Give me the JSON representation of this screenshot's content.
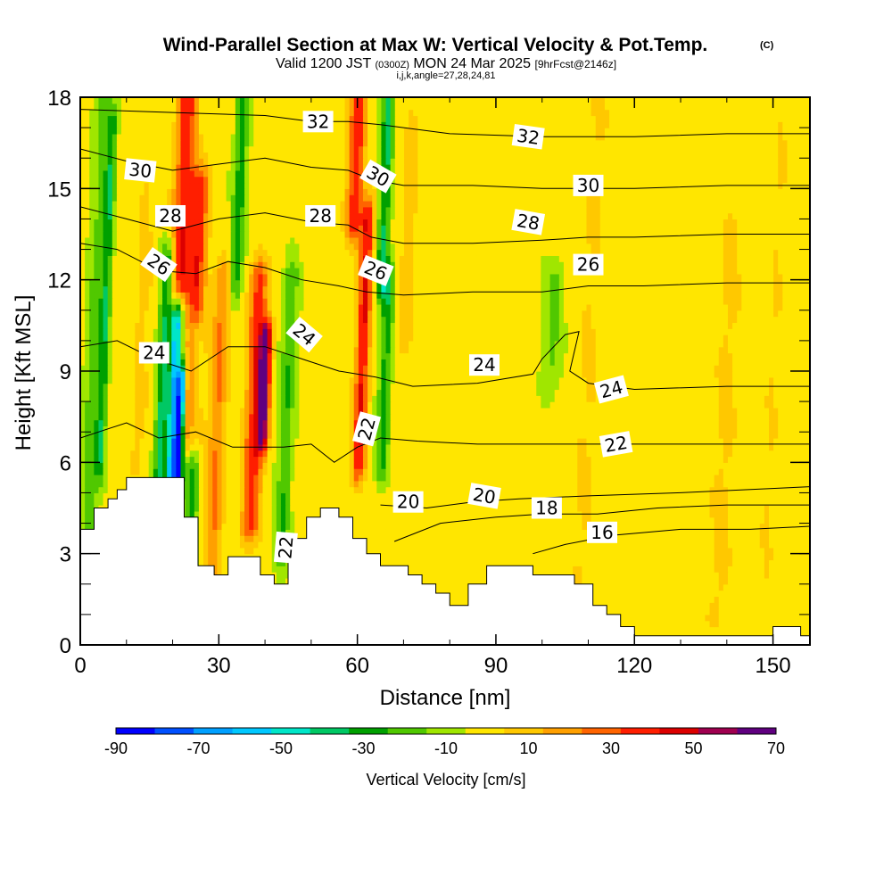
{
  "title": {
    "main": "Wind-Parallel Section at Max W: Vertical Velocity & Pot.Temp.",
    "copyright": "(C)",
    "valid_prefix": "Valid 1200 JST",
    "utc": "(0300Z)",
    "valid_date": "MON 24 Mar 2025",
    "forecast": "[9hrFcst@2146z]",
    "indices": "i,j,k,angle=27,28,24,81"
  },
  "chart_data": {
    "type": "heatmap",
    "xlabel": "Distance [nm]",
    "ylabel": "Height [Kft MSL]",
    "xlim": [
      0,
      158
    ],
    "ylim": [
      0,
      18
    ],
    "xticks": [
      "0",
      "30",
      "60",
      "90",
      "120",
      "150"
    ],
    "yticks": [
      "0",
      "3",
      "6",
      "9",
      "12",
      "15",
      "18"
    ],
    "x_minor_step": 10,
    "y_minor_step": 1,
    "colorbar": {
      "title": "Vertical Velocity [cm/s]",
      "tick_labels": [
        "-90",
        "-70",
        "-50",
        "-30",
        "-10",
        "10",
        "30",
        "50",
        "70"
      ],
      "bounds": [
        -90,
        -80,
        -70,
        -60,
        -50,
        -40,
        -30,
        -20,
        -10,
        0,
        10,
        20,
        30,
        40,
        50,
        60,
        70
      ],
      "colors": [
        "#0000ff",
        "#0050ff",
        "#00a0ff",
        "#00c8ff",
        "#00e6c8",
        "#00c864",
        "#00a000",
        "#50c800",
        "#a0e600",
        "#ffe600",
        "#ffc800",
        "#ffa000",
        "#ff6400",
        "#ff1e00",
        "#dc0000",
        "#a00050",
        "#600080"
      ]
    },
    "field_series": [
      {
        "x": 3,
        "w": 1.8,
        "ytop": 18,
        "ybot": 2.5,
        "amp": -18
      },
      {
        "x": 5,
        "w": 1.0,
        "ytop": 17,
        "ybot": 6,
        "amp": -28
      },
      {
        "x": 13,
        "w": 2.0,
        "ytop": 15,
        "ybot": 6,
        "amp": 10
      },
      {
        "x": 18,
        "w": 1.4,
        "ytop": 12.5,
        "ybot": 4.5,
        "amp": -36
      },
      {
        "x": 20.5,
        "w": 1.1,
        "ytop": 10.5,
        "ybot": 5.5,
        "amp": -62
      },
      {
        "x": 22,
        "w": 0.9,
        "ytop": 8.5,
        "ybot": 5.3,
        "amp": -85
      },
      {
        "x": 25,
        "w": 1.4,
        "ytop": 10,
        "ybot": 2.6,
        "amp": -28
      },
      {
        "x": 21,
        "w": 2.2,
        "ytop": 18,
        "ybot": 12,
        "amp": 45
      },
      {
        "x": 24.5,
        "w": 2.0,
        "ytop": 15,
        "ybot": 7,
        "amp": 42
      },
      {
        "x": 30,
        "w": 1.8,
        "ytop": 12,
        "ybot": 2.4,
        "amp": 28
      },
      {
        "x": 33,
        "w": 1.4,
        "ytop": 18,
        "ybot": 12,
        "amp": -28
      },
      {
        "x": 38,
        "w": 2.0,
        "ytop": 12,
        "ybot": 4,
        "amp": 42
      },
      {
        "x": 40,
        "w": 1.3,
        "ytop": 10,
        "ybot": 7,
        "amp": 62
      },
      {
        "x": 45,
        "w": 1.5,
        "ytop": 12,
        "ybot": 3,
        "amp": -22
      },
      {
        "x": 58,
        "w": 1.8,
        "ytop": 18,
        "ybot": 14,
        "amp": 45
      },
      {
        "x": 61,
        "w": 1.5,
        "ytop": 14,
        "ybot": 6,
        "amp": 48
      },
      {
        "x": 64.5,
        "w": 1.3,
        "ytop": 18,
        "ybot": 12,
        "amp": -35
      },
      {
        "x": 66,
        "w": 1.3,
        "ytop": 12,
        "ybot": 6,
        "amp": -28
      },
      {
        "x": 70,
        "w": 1.5,
        "ytop": 17,
        "ybot": 10,
        "amp": 14
      },
      {
        "x": 102,
        "w": 2.0,
        "ytop": 12,
        "ybot": 9,
        "amp": -15
      },
      {
        "x": 110,
        "w": 3.0,
        "ytop": 18,
        "ybot": 0.5,
        "amp": 8
      },
      {
        "x": 140,
        "w": 3.0,
        "ytop": 14,
        "ybot": 1,
        "amp": 9
      },
      {
        "x": 150,
        "w": 2.0,
        "ytop": 18,
        "ybot": 1,
        "amp": 7
      }
    ],
    "terrain": [
      [
        0,
        3.8
      ],
      [
        3,
        3.8
      ],
      [
        3,
        4.5
      ],
      [
        6,
        4.5
      ],
      [
        6,
        4.8
      ],
      [
        8,
        4.8
      ],
      [
        8,
        5.1
      ],
      [
        10,
        5.1
      ],
      [
        10,
        5.5
      ],
      [
        22.5,
        5.5
      ],
      [
        22.5,
        4.2
      ],
      [
        25.5,
        4.2
      ],
      [
        25.5,
        2.6
      ],
      [
        29,
        2.6
      ],
      [
        29,
        2.3
      ],
      [
        32,
        2.3
      ],
      [
        32,
        2.9
      ],
      [
        39,
        2.9
      ],
      [
        39,
        2.3
      ],
      [
        42,
        2.3
      ],
      [
        42,
        2.0
      ],
      [
        45,
        2.0
      ],
      [
        45,
        3.5
      ],
      [
        49,
        3.5
      ],
      [
        49,
        4.2
      ],
      [
        52,
        4.2
      ],
      [
        52,
        4.5
      ],
      [
        56,
        4.5
      ],
      [
        56,
        4.2
      ],
      [
        59,
        4.2
      ],
      [
        59,
        3.5
      ],
      [
        62,
        3.5
      ],
      [
        62,
        3.0
      ],
      [
        65,
        3.0
      ],
      [
        65,
        2.6
      ],
      [
        71,
        2.6
      ],
      [
        71,
        2.3
      ],
      [
        74,
        2.3
      ],
      [
        74,
        2.0
      ],
      [
        77,
        2.0
      ],
      [
        77,
        1.7
      ],
      [
        80,
        1.7
      ],
      [
        80,
        1.3
      ],
      [
        84,
        1.3
      ],
      [
        84,
        2.0
      ],
      [
        88,
        2.0
      ],
      [
        88,
        2.6
      ],
      [
        98,
        2.6
      ],
      [
        98,
        2.3
      ],
      [
        107,
        2.3
      ],
      [
        107,
        2.0
      ],
      [
        111,
        2.0
      ],
      [
        111,
        1.3
      ],
      [
        114,
        1.3
      ],
      [
        114,
        1.0
      ],
      [
        117,
        1.0
      ],
      [
        117,
        0.6
      ],
      [
        120,
        0.6
      ],
      [
        120,
        0.3
      ],
      [
        150,
        0.3
      ],
      [
        150,
        0.6
      ],
      [
        156,
        0.6
      ],
      [
        156,
        0.3
      ],
      [
        158,
        0.3
      ],
      [
        158,
        0
      ],
      [
        0,
        0
      ]
    ],
    "contour_series": [
      {
        "name": "32",
        "points": [
          [
            0,
            17.6
          ],
          [
            20,
            17.5
          ],
          [
            40,
            17.4
          ],
          [
            50,
            17.2
          ],
          [
            58,
            17.2
          ],
          [
            65,
            17.1
          ],
          [
            80,
            16.8
          ],
          [
            100,
            16.7
          ],
          [
            120,
            16.7
          ],
          [
            140,
            16.8
          ],
          [
            158,
            16.8
          ]
        ]
      },
      {
        "name": "30",
        "points": [
          [
            0,
            16.3
          ],
          [
            10,
            15.9
          ],
          [
            20,
            15.6
          ],
          [
            30,
            15.8
          ],
          [
            40,
            16.0
          ],
          [
            50,
            15.7
          ],
          [
            58,
            15.6
          ],
          [
            63,
            15.3
          ],
          [
            70,
            15.1
          ],
          [
            85,
            15.1
          ],
          [
            100,
            15.0
          ],
          [
            120,
            15.0
          ],
          [
            140,
            15.1
          ],
          [
            158,
            15.1
          ]
        ]
      },
      {
        "name": "28",
        "points": [
          [
            0,
            14.4
          ],
          [
            10,
            14.0
          ],
          [
            20,
            13.6
          ],
          [
            30,
            14.0
          ],
          [
            40,
            14.2
          ],
          [
            50,
            13.9
          ],
          [
            58,
            13.8
          ],
          [
            63,
            13.4
          ],
          [
            70,
            13.2
          ],
          [
            85,
            13.2
          ],
          [
            100,
            13.3
          ],
          [
            110,
            13.4
          ],
          [
            120,
            13.4
          ],
          [
            140,
            13.5
          ],
          [
            158,
            13.5
          ]
        ]
      },
      {
        "name": "26",
        "points": [
          [
            0,
            13.2
          ],
          [
            8,
            13.0
          ],
          [
            17,
            12.3
          ],
          [
            25,
            12.2
          ],
          [
            32,
            12.6
          ],
          [
            40,
            12.4
          ],
          [
            48,
            12.0
          ],
          [
            56,
            11.8
          ],
          [
            62,
            11.6
          ],
          [
            70,
            11.5
          ],
          [
            85,
            11.6
          ],
          [
            100,
            11.6
          ],
          [
            110,
            11.8
          ],
          [
            122,
            11.8
          ],
          [
            140,
            11.9
          ],
          [
            158,
            11.9
          ]
        ]
      },
      {
        "name": "24",
        "points": [
          [
            0,
            9.8
          ],
          [
            8,
            10.0
          ],
          [
            16,
            9.4
          ],
          [
            24,
            9.0
          ],
          [
            32,
            9.8
          ],
          [
            40,
            9.8
          ],
          [
            48,
            9.4
          ],
          [
            56,
            9.0
          ],
          [
            64,
            8.8
          ],
          [
            72,
            8.5
          ],
          [
            86,
            8.6
          ],
          [
            98,
            8.9
          ],
          [
            100,
            9.4
          ],
          [
            105,
            10.2
          ],
          [
            108,
            10.3
          ],
          [
            106,
            9.0
          ],
          [
            110,
            8.6
          ],
          [
            120,
            8.4
          ],
          [
            140,
            8.5
          ],
          [
            158,
            8.5
          ]
        ]
      },
      {
        "name": "22",
        "points": [
          [
            0,
            6.8
          ],
          [
            10,
            7.3
          ],
          [
            17,
            6.8
          ],
          [
            25,
            7.0
          ],
          [
            33,
            6.5
          ],
          [
            44,
            6.5
          ],
          [
            50,
            6.6
          ],
          [
            55,
            6.0
          ],
          [
            60,
            6.5
          ],
          [
            65,
            6.8
          ],
          [
            73,
            6.7
          ],
          [
            86,
            6.6
          ],
          [
            100,
            6.6
          ],
          [
            116,
            6.6
          ],
          [
            140,
            6.6
          ],
          [
            158,
            6.6
          ]
        ]
      },
      {
        "name": "20",
        "points": [
          [
            65,
            4.6
          ],
          [
            75,
            4.5
          ],
          [
            85,
            4.7
          ],
          [
            95,
            4.8
          ],
          [
            110,
            4.9
          ],
          [
            130,
            5.0
          ],
          [
            158,
            5.2
          ]
        ]
      },
      {
        "name": "18",
        "points": [
          [
            68,
            3.4
          ],
          [
            78,
            4.0
          ],
          [
            90,
            4.2
          ],
          [
            100,
            4.3
          ],
          [
            112,
            4.3
          ],
          [
            125,
            4.5
          ],
          [
            140,
            4.6
          ],
          [
            158,
            4.6
          ]
        ]
      },
      {
        "name": "16",
        "points": [
          [
            98,
            3.0
          ],
          [
            105,
            3.3
          ],
          [
            115,
            3.6
          ],
          [
            130,
            3.8
          ],
          [
            145,
            3.8
          ],
          [
            158,
            3.9
          ]
        ]
      }
    ],
    "contour_labels": [
      {
        "text": "32",
        "x": 51.5,
        "y": 17.2,
        "angle": 0
      },
      {
        "text": "32",
        "x": 97,
        "y": 16.7,
        "angle": 8
      },
      {
        "text": "30",
        "x": 13,
        "y": 15.6,
        "angle": 6
      },
      {
        "text": "30",
        "x": 64.5,
        "y": 15.4,
        "angle": 30
      },
      {
        "text": "30",
        "x": 110,
        "y": 15.1,
        "angle": 0
      },
      {
        "text": "28",
        "x": 19.5,
        "y": 14.1,
        "angle": 0
      },
      {
        "text": "28",
        "x": 52,
        "y": 14.1,
        "angle": 0
      },
      {
        "text": "28",
        "x": 97,
        "y": 13.9,
        "angle": 10
      },
      {
        "text": "26",
        "x": 17,
        "y": 12.5,
        "angle": 35
      },
      {
        "text": "26",
        "x": 64,
        "y": 12.3,
        "angle": 22
      },
      {
        "text": "26",
        "x": 110,
        "y": 12.5,
        "angle": 0
      },
      {
        "text": "24",
        "x": 16,
        "y": 9.6,
        "angle": 0
      },
      {
        "text": "24",
        "x": 48.5,
        "y": 10.2,
        "angle": 40
      },
      {
        "text": "24",
        "x": 87.5,
        "y": 9.2,
        "angle": 0
      },
      {
        "text": "24",
        "x": 115,
        "y": 8.4,
        "angle": -15
      },
      {
        "text": "22",
        "x": 62,
        "y": 7.1,
        "angle": -75
      },
      {
        "text": "22",
        "x": 116,
        "y": 6.6,
        "angle": -10
      },
      {
        "text": "22",
        "x": 44.5,
        "y": 3.2,
        "angle": -85
      },
      {
        "text": "20",
        "x": 71,
        "y": 4.7,
        "angle": 0
      },
      {
        "text": "20",
        "x": 87.5,
        "y": 4.9,
        "angle": 10
      },
      {
        "text": "18",
        "x": 101,
        "y": 4.5,
        "angle": 0
      },
      {
        "text": "16",
        "x": 113,
        "y": 3.7,
        "angle": 0
      }
    ]
  }
}
